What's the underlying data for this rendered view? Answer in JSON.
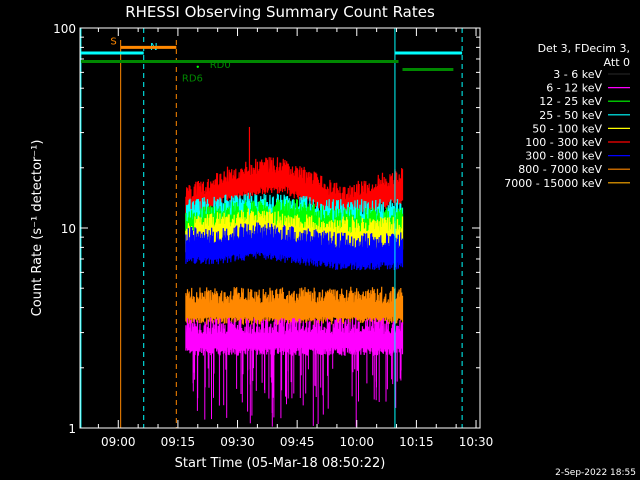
{
  "chart_data": {
    "type": "line",
    "title": "RHESSI Observing Summary Count Rates",
    "xlabel": "Start Time (05-Mar-18 08:50:22)",
    "ylabel": "Count Rate (s⁻¹ detector⁻¹)",
    "yscale": "log",
    "ylim": [
      1,
      100
    ],
    "y_ticks": [
      {
        "value": 1,
        "label": "1"
      },
      {
        "value": 10,
        "label": "10"
      },
      {
        "value": 100,
        "label": "100"
      }
    ],
    "x_ticks": [
      "09:00",
      "09:15",
      "09:30",
      "09:45",
      "10:00",
      "10:15",
      "10:30"
    ],
    "x_tick_minutes": [
      540,
      555,
      570,
      585,
      600,
      615,
      630
    ],
    "xlim_minutes": [
      530.37,
      631.0
    ],
    "data_start_minute": 557.0,
    "data_end_minute": 611.5,
    "footer_date": "2-Sep-2022 18:55",
    "legend": {
      "header": [
        "Det 3, FDecim 3,",
        "Att 0"
      ],
      "placement": "right",
      "entries": [
        {
          "label": "3 - 6 keV",
          "color": "#000000"
        },
        {
          "label": "6 - 12 keV",
          "color": "#ff00ff"
        },
        {
          "label": "12 - 25 keV",
          "color": "#00ff00"
        },
        {
          "label": "25 - 50 keV",
          "color": "#00ffff"
        },
        {
          "label": "50 - 100 keV",
          "color": "#ffff00"
        },
        {
          "label": "100 - 300 keV",
          "color": "#ff0000"
        },
        {
          "label": "300 - 800 keV",
          "color": "#0000ff"
        },
        {
          "label": "800 - 7000 keV",
          "color": "#ff8800"
        },
        {
          "label": "7000 - 15000 keV",
          "color": "#ffaa00"
        }
      ]
    },
    "series_levels": [
      {
        "name": "100 - 300 keV",
        "color": "#ff0000",
        "x": [
          557,
          562,
          567,
          572,
          577,
          582,
          587,
          592,
          597,
          602,
          607,
          611.5
        ],
        "y": [
          13,
          14,
          16,
          17,
          18,
          18,
          16,
          14,
          13,
          14,
          15,
          16
        ]
      },
      {
        "name": "25 - 50 keV",
        "color": "#00ffff",
        "x": [
          557,
          565,
          575,
          585,
          595,
          605,
          611.5
        ],
        "y": [
          11,
          11.5,
          12,
          11.5,
          11,
          11,
          11
        ]
      },
      {
        "name": "12 - 25 keV",
        "color": "#00ff00",
        "x": [
          557,
          565,
          575,
          585,
          595,
          605,
          611.5
        ],
        "y": [
          10,
          10.5,
          11,
          11,
          10,
          10,
          10
        ]
      },
      {
        "name": "50 - 100 keV",
        "color": "#ffff00",
        "x": [
          557,
          565,
          575,
          585,
          595,
          605,
          611.5
        ],
        "y": [
          9,
          9.5,
          10,
          9.5,
          9,
          9,
          9
        ]
      },
      {
        "name": "300 - 800 keV",
        "color": "#0000ff",
        "x": [
          557,
          565,
          575,
          585,
          595,
          605,
          611.5
        ],
        "y": [
          8,
          8,
          8.5,
          8,
          7.5,
          7.5,
          7.5
        ]
      },
      {
        "name": "3 - 6 keV",
        "color": "#000000",
        "x": [
          557,
          565,
          575,
          585,
          595,
          605,
          611.5
        ],
        "y": [
          4.5,
          4.5,
          4.5,
          4.5,
          4.5,
          4.5,
          4.5
        ]
      },
      {
        "name": "800 - 7000 keV",
        "color": "#ff8800",
        "x": [
          557,
          565,
          575,
          585,
          595,
          605,
          611.5
        ],
        "y": [
          4,
          4,
          4,
          4,
          4,
          4,
          4
        ]
      },
      {
        "name": "6 - 12 keV",
        "color": "#ff00ff",
        "x": [
          557,
          565,
          575,
          585,
          595,
          605,
          611.5
        ],
        "y": [
          2.8,
          2.8,
          2.8,
          2.8,
          2.8,
          2.8,
          2.8
        ]
      }
    ],
    "spike": {
      "x": 573,
      "y": 32
    },
    "markers": {
      "cyan_solid": [
        530.6,
        609.6
      ],
      "cyan_dashed": [
        546.4,
        626.5
      ],
      "orange_solid": [
        540.6
      ],
      "orange_dashed": [
        554.6
      ]
    },
    "bars": [
      {
        "label": "N",
        "color": "#00ffff",
        "x": [
          530.6,
          546.4
        ],
        "y": 75,
        "label_x": 548.0
      },
      {
        "label": "",
        "color": "#00ffff",
        "x": [
          609.6,
          626.5
        ],
        "y": 75
      },
      {
        "label": "S",
        "color": "#ff8800",
        "x": [
          540.6,
          554.6
        ],
        "y": 80,
        "label_x": 538.0
      },
      {
        "label": "RD6",
        "color": "#008800",
        "x": [
          530.6,
          610.5
        ],
        "y": 68,
        "label_x": 556.0,
        "label_y": 60
      },
      {
        "label": "",
        "color": "#008800",
        "x": [
          611.5,
          624.3
        ],
        "y": 62
      },
      {
        "label": "RD0",
        "color": "#008800",
        "label_x": 563.0,
        "label_y": 70
      }
    ],
    "grid": false
  }
}
